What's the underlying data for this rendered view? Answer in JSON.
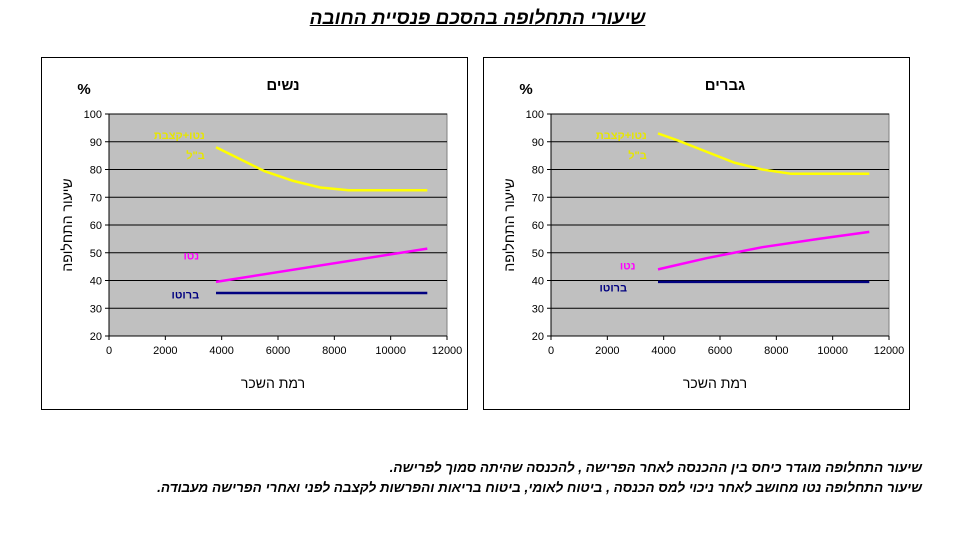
{
  "page": {
    "title": "שיעורי התחלופה בהסכם פנסיית החובה",
    "notes": [
      "שיעור התחלופה מוגדר כיחס בין ההכנסה לאחר הפרישה , להכנסה שהיתה סמוך לפרישה.",
      "שיעור התחלופה נטו מחושב לאחר ניכוי למס הכנסה , ביטוח לאומי, ביטוח בריאות והפרשות לקצבה לפני ואחרי הפרישה מעבודה."
    ]
  },
  "chart_data": [
    {
      "id": "women",
      "type": "line",
      "title": "נשים",
      "xlabel": "רמת השכר",
      "ylabel": "שיעור התחלופה",
      "yunit": "%",
      "xlim": [
        0,
        12000
      ],
      "ylim": [
        20,
        100
      ],
      "xticks": [
        0,
        2000,
        4000,
        6000,
        8000,
        10000,
        12000
      ],
      "yticks": [
        20,
        30,
        40,
        50,
        60,
        70,
        80,
        90,
        100
      ],
      "grid": "horizontal",
      "plot_bg": "#c0c0c0",
      "series": [
        {
          "name": "נטו+קצבת ב\"ל",
          "label_lines": [
            "נטו+קצבת",
            "ב\"ל"
          ],
          "color": "#ffff00",
          "label_color": "#e6e600",
          "x": [
            3800,
            4500,
            5500,
            6500,
            7500,
            8500,
            9500,
            10500,
            11300
          ],
          "y": [
            88,
            84.5,
            79.5,
            76,
            73.5,
            72.5,
            72.5,
            72.5,
            72.5
          ]
        },
        {
          "name": "נטו",
          "label_lines": [
            "נטו"
          ],
          "color": "#ff00ff",
          "label_color": "#ff00ff",
          "x": [
            3800,
            11300
          ],
          "y": [
            39.5,
            51.5
          ]
        },
        {
          "name": "ברוטו",
          "label_lines": [
            "ברוטו"
          ],
          "color": "#000080",
          "label_color": "#000080",
          "x": [
            3800,
            11300
          ],
          "y": [
            35.5,
            35.5
          ]
        }
      ]
    },
    {
      "id": "men",
      "type": "line",
      "title": "גברים",
      "xlabel": "רמת השכר",
      "ylabel": "שיעור התחלופה",
      "yunit": "%",
      "xlim": [
        0,
        12000
      ],
      "ylim": [
        20,
        100
      ],
      "xticks": [
        0,
        2000,
        4000,
        6000,
        8000,
        10000,
        12000
      ],
      "yticks": [
        20,
        30,
        40,
        50,
        60,
        70,
        80,
        90,
        100
      ],
      "grid": "horizontal",
      "plot_bg": "#c0c0c0",
      "series": [
        {
          "name": "נטו+קצבת ב\"ל",
          "label_lines": [
            "נטו+קצבת",
            "ב\"ל"
          ],
          "color": "#ffff00",
          "label_color": "#e6e600",
          "x": [
            3800,
            4500,
            5500,
            6500,
            7500,
            8500,
            9500,
            10500,
            11300
          ],
          "y": [
            93,
            90.5,
            86.5,
            82.5,
            80,
            78.5,
            78.5,
            78.5,
            78.5
          ]
        },
        {
          "name": "נטו",
          "label_lines": [
            "נטו"
          ],
          "color": "#ff00ff",
          "label_color": "#ff00ff",
          "x": [
            3800,
            5500,
            7500,
            9500,
            11300
          ],
          "y": [
            44,
            48,
            52,
            55,
            57.5
          ]
        },
        {
          "name": "ברוטו",
          "label_lines": [
            "ברוטו"
          ],
          "color": "#000080",
          "label_color": "#000080",
          "x": [
            3800,
            11300
          ],
          "y": [
            39.5,
            39.5
          ]
        }
      ]
    }
  ]
}
